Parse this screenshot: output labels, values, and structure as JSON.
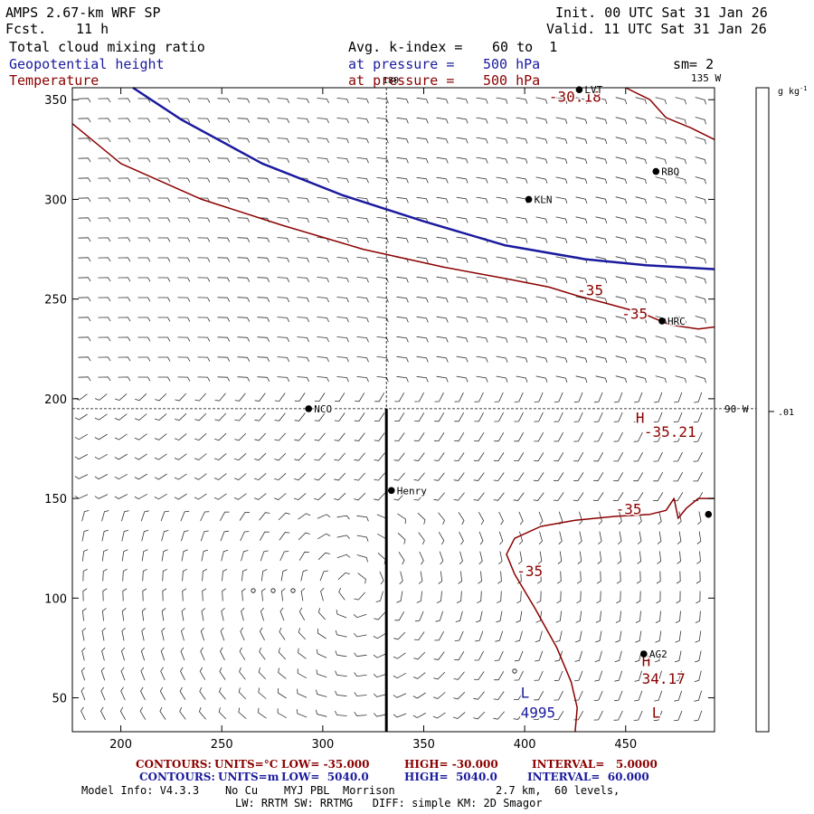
{
  "header": {
    "model_title": "AMPS 2.67-km WRF SP",
    "fcst_label": "Fcst.",
    "fcst_value": "11 h",
    "init": "Init. 00 UTC Sat 31 Jan 26",
    "valid": "Valid. 11 UTC Sat 31 Jan 26"
  },
  "fields": {
    "field1": "Total cloud mixing ratio",
    "field2": "Geopotential height",
    "field3": "Temperature",
    "avg_label": "Avg. k-index =",
    "avg_range": "60 to  1",
    "pressure_label": "at pressure =",
    "pressure_value": "500 hPa",
    "sm": "sm= 2"
  },
  "chart_data": {
    "type": "map",
    "x_ticks": [
      200,
      250,
      300,
      350,
      400,
      450
    ],
    "y_ticks": [
      50,
      100,
      150,
      200,
      250,
      300,
      350
    ],
    "xlim": [
      176,
      494
    ],
    "ylim": [
      33,
      356
    ],
    "lon_labels": [
      "180",
      "135 W",
      "90 W"
    ],
    "colorbar": {
      "unit": "g kg",
      "unit_exp": "-1",
      "tick_label": ".01",
      "tick_value": 0.01
    },
    "height_contours": [
      {
        "name": "Geopotential height",
        "color": "#1a1a9e",
        "points": [
          [
            206,
            356
          ],
          [
            230,
            340
          ],
          [
            270,
            318
          ],
          [
            310,
            302
          ],
          [
            350,
            289
          ],
          [
            390,
            277
          ],
          [
            430,
            270
          ],
          [
            460,
            267
          ],
          [
            494,
            265
          ]
        ]
      }
    ],
    "temperature_contours": [
      {
        "name": "T -35 north",
        "color": "#8b0000",
        "points": [
          [
            176,
            338
          ],
          [
            200,
            318
          ],
          [
            240,
            300
          ],
          [
            280,
            287
          ],
          [
            320,
            275
          ],
          [
            360,
            266
          ],
          [
            392,
            260
          ],
          [
            412,
            256
          ],
          [
            425,
            252
          ],
          [
            440,
            248
          ],
          [
            458,
            243
          ],
          [
            472,
            237
          ],
          [
            486,
            235
          ],
          [
            494,
            236
          ]
        ]
      },
      {
        "name": "T -30 NE",
        "color": "#8b0000",
        "points": [
          [
            450,
            356
          ],
          [
            462,
            350
          ],
          [
            470,
            341
          ],
          [
            482,
            336
          ],
          [
            494,
            330
          ]
        ]
      },
      {
        "name": "T -35 south",
        "color": "#8b0000",
        "points": [
          [
            425,
            33
          ],
          [
            426,
            45
          ],
          [
            423,
            58
          ],
          [
            416,
            75
          ],
          [
            405,
            95
          ],
          [
            395,
            112
          ],
          [
            391,
            122
          ],
          [
            395,
            130
          ],
          [
            408,
            136
          ],
          [
            425,
            139
          ],
          [
            445,
            141
          ],
          [
            462,
            142
          ],
          [
            470,
            144
          ],
          [
            474,
            150
          ],
          [
            476,
            140
          ],
          [
            480,
            145
          ],
          [
            486,
            150
          ],
          [
            494,
            150
          ]
        ]
      }
    ],
    "contour_labels": [
      {
        "text": "-30.18",
        "x": 412,
        "y": 349
      },
      {
        "text": "-35",
        "x": 426,
        "y": 252
      },
      {
        "text": "-35",
        "x": 448,
        "y": 240
      },
      {
        "text": "-35",
        "x": 445,
        "y": 142
      },
      {
        "text": "-35",
        "x": 396,
        "y": 111
      },
      {
        "text": "-35.21",
        "x": 459,
        "y": 181
      },
      {
        "text": "34.17",
        "x": 458,
        "y": 57
      }
    ],
    "extrema": [
      {
        "text": "H",
        "x": 455,
        "y": 188,
        "color": "#8b0000"
      },
      {
        "text": "H",
        "x": 458,
        "y": 66,
        "color": "#8b0000"
      },
      {
        "text": "L",
        "x": 463,
        "y": 40,
        "color": "#8b0000"
      },
      {
        "text": "L",
        "x": 398,
        "y": 50,
        "color": "#1a1a9e"
      },
      {
        "text": "4995",
        "x": 398,
        "y": 40,
        "color": "#1a1a9e"
      }
    ],
    "stations": [
      {
        "name": "NCO",
        "x": 293,
        "y": 195
      },
      {
        "name": "Henry",
        "x": 334,
        "y": 154
      },
      {
        "name": "KLN",
        "x": 402,
        "y": 300
      },
      {
        "name": "RBQ",
        "x": 465,
        "y": 314
      },
      {
        "name": "HRC",
        "x": 468,
        "y": 239
      },
      {
        "name": "AG2",
        "x": 459,
        "y": 72
      },
      {
        "name": "LVT",
        "x": 427,
        "y": 355
      },
      {
        "name": "",
        "x": 491,
        "y": 142
      }
    ],
    "section_line": {
      "x": 331.5,
      "y1": 33,
      "y2": 195
    },
    "dashed_lon_x": 331.5,
    "dashed_lat_y": 195
  },
  "footer": {
    "row1": {
      "label": "CONTOURS:",
      "units": "UNITS=°C",
      "low": "LOW= -35.000",
      "high": "HIGH= -30.000",
      "interval": "INTERVAL=   5.0000"
    },
    "row2": {
      "label": "CONTOURS:",
      "units": "UNITS=m",
      "low": "LOW=  5040.0",
      "high": "HIGH=  5040.0",
      "interval": "INTERVAL=  60.000"
    },
    "model_info": "Model Info: V4.3.3    No Cu    MYJ PBL  Morrison",
    "levels": "2.7 km,  60 levels,",
    "physics": "LW: RRTM SW: RRTMG   DIFF: simple KM: 2D Smagor"
  }
}
